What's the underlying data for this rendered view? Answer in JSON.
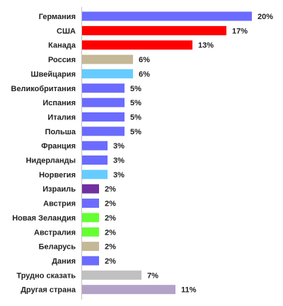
{
  "chart_data": {
    "type": "bar",
    "orientation": "horizontal",
    "unit": "%",
    "grid": false,
    "legend": "none",
    "categories": [
      "Германия",
      "США",
      "Канада",
      "Россия",
      "Швейцария",
      "Великобритания",
      "Испания",
      "Италия",
      "Польша",
      "Франция",
      "Нидерланды",
      "Норвегия",
      "Израиль",
      "Австрия",
      "Новая Зеландия",
      "Австралия",
      "Беларусь",
      "Дания",
      "Трудно сказать",
      "Другая страна"
    ],
    "values": [
      20,
      17,
      13,
      6,
      6,
      5,
      5,
      5,
      5,
      3,
      3,
      3,
      2,
      2,
      2,
      2,
      2,
      2,
      7,
      11
    ],
    "labels": [
      "20%",
      "17%",
      "13%",
      "6%",
      "6%",
      "5%",
      "5%",
      "5%",
      "5%",
      "3%",
      "3%",
      "3%",
      "2%",
      "2%",
      "2%",
      "2%",
      "2%",
      "2%",
      "7%",
      "11%"
    ],
    "colors": [
      "#6b6bff",
      "#ff0000",
      "#ff0000",
      "#c4b896",
      "#66ccff",
      "#6b6bff",
      "#6b6bff",
      "#6b6bff",
      "#6b6bff",
      "#6b6bff",
      "#6b6bff",
      "#66ccff",
      "#7030a0",
      "#6b6bff",
      "#66ff33",
      "#66ff33",
      "#c4b896",
      "#6b6bff",
      "#c0c0c0",
      "#b3a2c7"
    ],
    "xlim": [
      0,
      20
    ]
  }
}
